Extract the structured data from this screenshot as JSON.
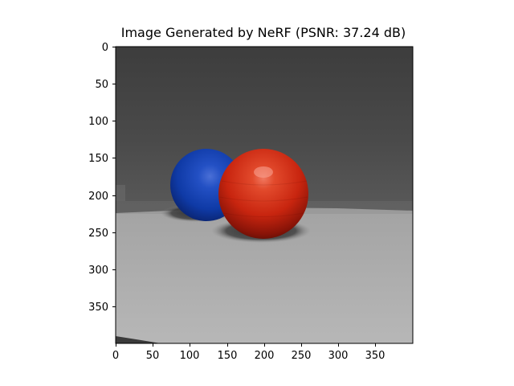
{
  "title": "Image Generated by NeRF (PSNR: 37.24 dB)",
  "x_ticks": [
    "0",
    "50",
    "100",
    "150",
    "200",
    "250",
    "300",
    "350"
  ],
  "y_ticks": [
    "0",
    "50",
    "100",
    "150",
    "200",
    "250",
    "300",
    "350"
  ],
  "image": {
    "description_icon": "rendered-scene-image",
    "colors": {
      "background_wall": "#474747",
      "floor": "#a9a9a9",
      "blue_sphere": "#1036a8",
      "red_sphere": "#c8250f"
    }
  }
}
